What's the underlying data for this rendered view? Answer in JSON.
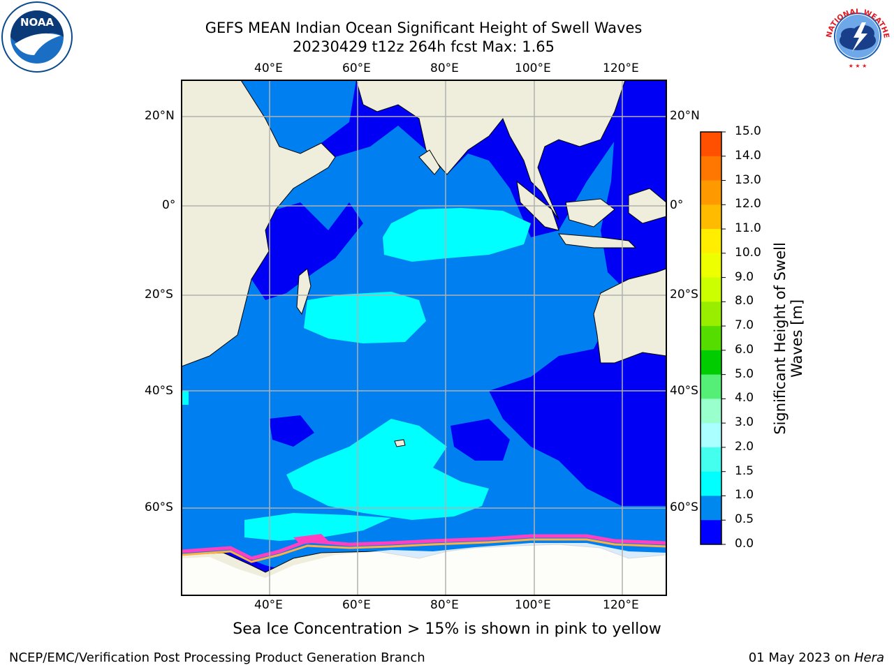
{
  "title_line1": "GEFS MEAN Indian Ocean Significant Height of Swell Waves",
  "title_line2": "20230429 t12z 264h fcst   Max: 1.65",
  "colorbar_label_line1": "Significant Height of Swell",
  "colorbar_label_line2": "Waves [m]",
  "caption": "Sea Ice Concentration > 15% is shown in pink to yellow",
  "footer_left": "NCEP/EMC/Verification Post Processing Product Generation Branch",
  "footer_date": "01 May 2023 on ",
  "footer_machine": "Hera",
  "lon_ticks": [
    "40°E",
    "60°E",
    "80°E",
    "100°E",
    "120°E"
  ],
  "lat_ticks": [
    "20°N",
    "0°",
    "20°S",
    "40°S",
    "60°S"
  ],
  "colorbar_ticks": [
    "15.0",
    "14.0",
    "13.0",
    "12.0",
    "11.0",
    "10.0",
    "9.0",
    "8.0",
    "7.0",
    "6.0",
    "5.0",
    "4.0",
    "3.0",
    "2.0",
    "1.5",
    "1.0",
    "0.5",
    "0.0"
  ],
  "colorbar_colors": [
    "#ff0000",
    "#ff2200",
    "#ff4f00",
    "#ff7700",
    "#ff9900",
    "#ffbb00",
    "#ffee00",
    "#eeff00",
    "#ccff00",
    "#99ee00",
    "#55dd00",
    "#00cc00",
    "#55ee77",
    "#99ffcc",
    "#aaffff",
    "#44ffee",
    "#00ffff",
    "#0088ee",
    "#0000ff"
  ],
  "colors": {
    "land": "#efeedd",
    "ocean_dark": "#0000f5",
    "ocean_mid": "#0080f0",
    "ocean_light": "#00ffff",
    "ice_pink": "#ff40c0",
    "ice_orange": "#ffb040",
    "grid": "#b0b0b0"
  },
  "logos": [
    "noaa-logo",
    "nws-logo"
  ],
  "logo_text": {
    "noaa": "NOAA",
    "nws_ring": "NATIONAL WEATHER SERVICE"
  }
}
